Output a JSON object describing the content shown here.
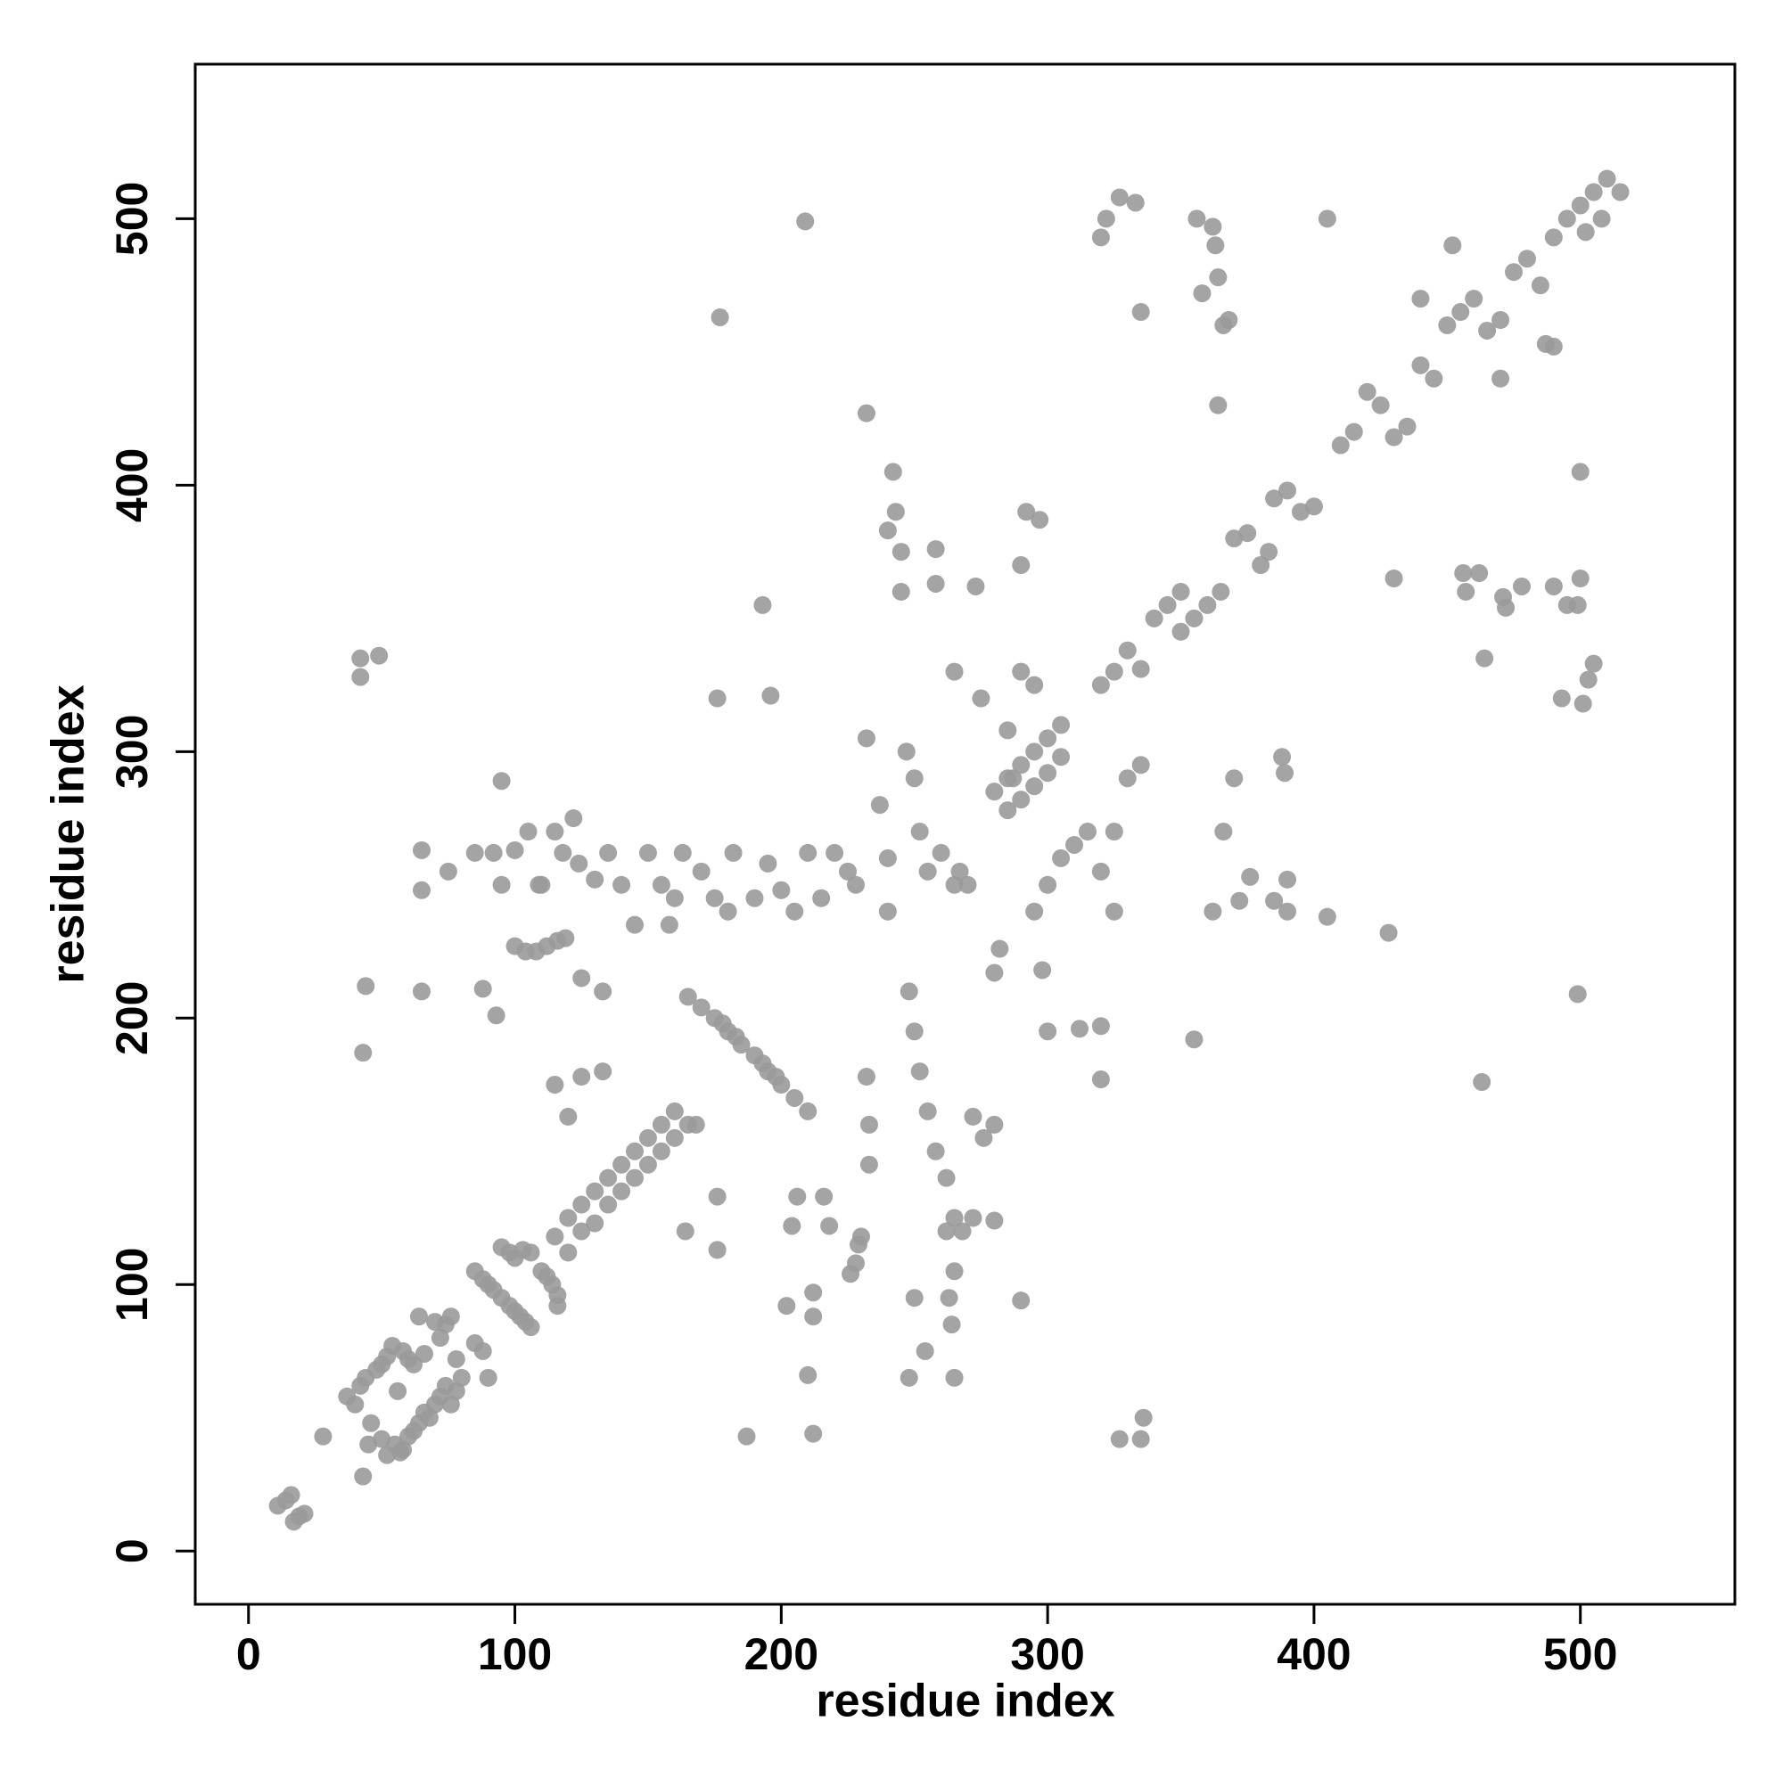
{
  "chart_data": {
    "type": "scatter",
    "xlabel": "residue index",
    "ylabel": "residue index",
    "color": "#9a9a9a",
    "xlim": [
      -20,
      558
    ],
    "ylim": [
      -20,
      558
    ],
    "xticks": [
      0,
      100,
      200,
      300,
      400,
      500
    ],
    "yticks": [
      0,
      100,
      200,
      300,
      400,
      500
    ],
    "x": [
      11,
      14,
      16,
      17,
      19,
      21,
      28,
      43,
      37,
      40,
      42,
      44,
      46,
      48,
      50,
      52,
      54,
      56,
      58,
      60,
      62,
      64,
      66,
      70,
      72,
      74,
      76,
      78,
      55,
      58,
      60,
      62,
      64,
      66,
      68,
      70,
      72,
      74,
      76,
      78,
      80,
      85,
      88,
      90,
      45,
      50,
      52,
      57,
      85,
      88,
      90,
      92,
      95,
      98,
      100,
      102,
      104,
      106,
      95,
      98,
      100,
      103,
      106,
      110,
      112,
      114,
      116,
      116,
      115,
      120,
      125,
      130,
      135,
      140,
      145,
      150,
      155,
      160,
      120,
      125,
      130,
      135,
      140,
      145,
      150,
      155,
      160,
      165,
      168,
      165,
      170,
      175,
      180,
      185,
      190,
      195,
      200,
      205,
      210,
      178,
      183,
      193,
      198,
      100,
      104,
      108,
      112,
      116,
      119,
      65,
      65,
      75,
      85,
      92,
      95,
      100,
      105,
      110,
      115,
      118,
      122,
      124,
      130,
      135,
      140,
      145,
      150,
      155,
      158,
      160,
      163,
      170,
      175,
      180,
      182,
      190,
      195,
      200,
      205,
      210,
      215,
      220,
      225,
      228,
      42,
      42,
      49,
      43,
      44,
      65,
      88,
      93,
      95,
      109,
      115,
      120,
      125,
      125,
      133,
      133,
      164,
      176,
      177,
      176,
      176,
      193,
      196,
      209,
      204,
      206,
      212,
      212,
      210,
      212,
      187,
      202,
      216,
      218,
      226,
      228,
      229,
      230,
      232,
      233,
      233,
      232,
      232,
      237,
      240,
      240,
      242,
      240,
      243,
      245,
      245,
      247,
      250,
      252,
      255,
      260,
      265,
      267,
      270,
      248,
      250,
      252,
      255,
      258,
      262,
      265,
      265,
      263,
      264,
      265,
      248,
      250,
      254,
      262,
      268,
      272,
      280,
      276,
      272,
      280,
      258,
      258,
      273,
      280,
      282,
      290,
      292,
      297,
      290,
      285,
      290,
      295,
      287,
      295,
      300,
      305,
      310,
      315,
      320,
      325,
      298,
      300,
      312,
      320,
      320,
      322,
      320,
      327,
      333,
      335,
      327,
      335,
      336,
      330,
      335,
      325,
      355,
      356,
      358,
      362,
      363,
      364,
      366,
      368,
      364,
      370,
      366,
      362,
      372,
      376,
      385,
      388,
      389,
      390,
      390,
      405,
      405,
      428,
      430,
      440,
      456,
      457,
      462,
      463,
      464,
      470,
      471,
      472,
      478,
      490,
      493,
      495,
      499,
      500,
      500,
      499,
      501,
      503,
      505,
      320,
      325,
      330,
      335,
      340,
      345,
      350,
      350,
      355,
      360,
      365,
      370,
      375,
      380,
      383,
      385,
      390,
      395,
      400,
      410,
      415,
      420,
      425,
      430,
      435,
      440,
      445,
      452,
      450,
      455,
      460,
      465,
      470,
      475,
      480,
      485,
      490,
      495,
      500,
      505,
      510,
      502,
      508,
      515,
      490,
      487,
      280,
      285,
      290,
      295,
      300,
      305,
      285,
      290,
      295,
      300,
      305,
      265,
      275
    ],
    "y": [
      17,
      19,
      21,
      11,
      13,
      14,
      43,
      28,
      58,
      55,
      62,
      65,
      48,
      68,
      70,
      73,
      77,
      60,
      75,
      72,
      70,
      88,
      74,
      86,
      80,
      85,
      88,
      72,
      40,
      38,
      43,
      45,
      48,
      52,
      50,
      55,
      58,
      62,
      55,
      60,
      65,
      78,
      75,
      65,
      40,
      42,
      36,
      37,
      105,
      102,
      100,
      98,
      95,
      92,
      90,
      88,
      86,
      84,
      114,
      112,
      110,
      113,
      112,
      105,
      103,
      100,
      96,
      92,
      118,
      125,
      130,
      135,
      140,
      145,
      150,
      155,
      160,
      165,
      112,
      120,
      123,
      130,
      135,
      140,
      145,
      150,
      155,
      160,
      160,
      208,
      204,
      200,
      195,
      190,
      186,
      180,
      175,
      170,
      165,
      198,
      193,
      183,
      178,
      227,
      225,
      225,
      227,
      229,
      230,
      263,
      248,
      255,
      262,
      262,
      250,
      263,
      270,
      250,
      270,
      262,
      275,
      258,
      252,
      262,
      250,
      235,
      262,
      250,
      235,
      245,
      262,
      255,
      245,
      240,
      262,
      245,
      258,
      248,
      240,
      262,
      245,
      262,
      255,
      250,
      335,
      328,
      336,
      187,
      212,
      210,
      211,
      201,
      289,
      250,
      175,
      163,
      178,
      215,
      180,
      210,
      120,
      320,
      463,
      133,
      113,
      355,
      321,
      499,
      122,
      133,
      97,
      88,
      66,
      44,
      43,
      92,
      133,
      122,
      104,
      108,
      115,
      118,
      178,
      160,
      145,
      305,
      427,
      280,
      260,
      240,
      405,
      383,
      390,
      375,
      360,
      300,
      290,
      270,
      255,
      262,
      250,
      255,
      250,
      210,
      195,
      180,
      165,
      150,
      140,
      125,
      105,
      95,
      85,
      65,
      65,
      95,
      75,
      120,
      120,
      125,
      124,
      155,
      163,
      160,
      376,
      363,
      362,
      217,
      226,
      94,
      390,
      387,
      370,
      308,
      330,
      325,
      290,
      240,
      250,
      260,
      265,
      270,
      255,
      240,
      218,
      195,
      196,
      177,
      197,
      500,
      493,
      508,
      506,
      465,
      42,
      42,
      50,
      290,
      295,
      270,
      192,
      500,
      472,
      497,
      490,
      478,
      460,
      462,
      430,
      290,
      270,
      240,
      244,
      253,
      244,
      298,
      292,
      252,
      240,
      500,
      238,
      232,
      365,
      470,
      367,
      360,
      367,
      176,
      335,
      440,
      358,
      354,
      362,
      362,
      320,
      355,
      355,
      365,
      405,
      209,
      318,
      327,
      333,
      325,
      330,
      338,
      331,
      350,
      355,
      360,
      345,
      350,
      355,
      360,
      380,
      382,
      370,
      375,
      395,
      398,
      390,
      392,
      415,
      420,
      435,
      430,
      418,
      422,
      445,
      440,
      490,
      460,
      465,
      470,
      458,
      462,
      480,
      485,
      475,
      493,
      500,
      505,
      510,
      515,
      495,
      500,
      510,
      452,
      453,
      285,
      290,
      295,
      300,
      305,
      310,
      278,
      282,
      287,
      292,
      298,
      330,
      320
    ]
  }
}
